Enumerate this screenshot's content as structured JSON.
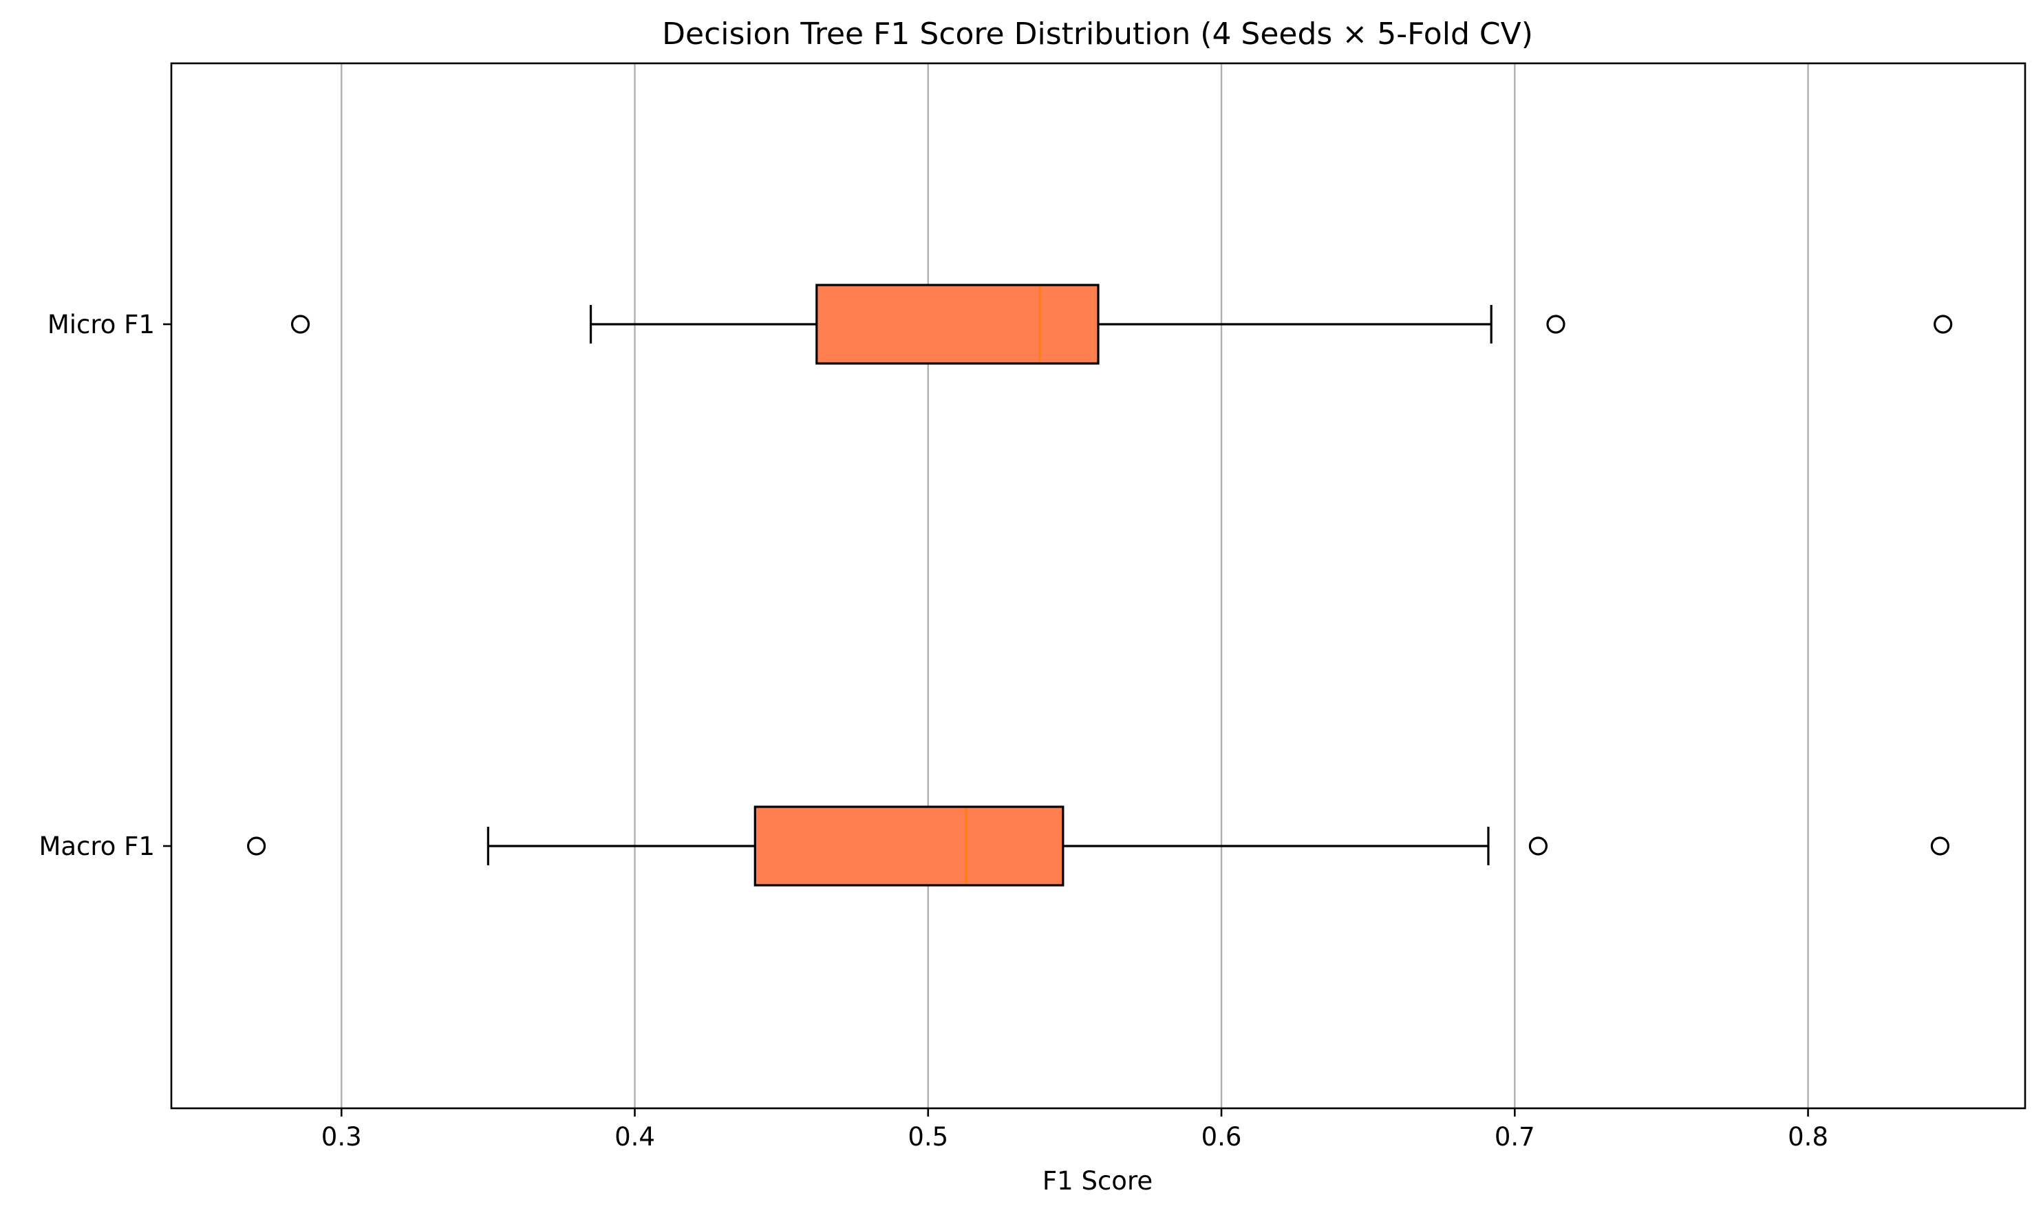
{
  "chart_data": {
    "type": "boxplot",
    "orientation": "horizontal",
    "title": "Decision Tree F1 Score Distribution (4 Seeds × 5-Fold CV)",
    "xlabel": "F1 Score",
    "ylabel": "",
    "xlim": [
      0.242,
      0.874
    ],
    "xticks": [
      0.3,
      0.4,
      0.5,
      0.6,
      0.7,
      0.8
    ],
    "xtick_labels": [
      "0.3",
      "0.4",
      "0.5",
      "0.6",
      "0.7",
      "0.8"
    ],
    "grid": "x-axis vertical gridlines",
    "legend": "none",
    "box_color": "#ff7f50",
    "median_color": "#ff7f0e",
    "series": [
      {
        "name": "Micro F1",
        "whisker_low": 0.385,
        "q1": 0.462,
        "median": 0.538,
        "q3": 0.558,
        "whisker_high": 0.692,
        "outliers": [
          0.286,
          0.714,
          0.846
        ]
      },
      {
        "name": "Macro F1",
        "whisker_low": 0.35,
        "q1": 0.441,
        "median": 0.513,
        "q3": 0.546,
        "whisker_high": 0.691,
        "outliers": [
          0.271,
          0.708,
          0.845
        ]
      }
    ]
  }
}
